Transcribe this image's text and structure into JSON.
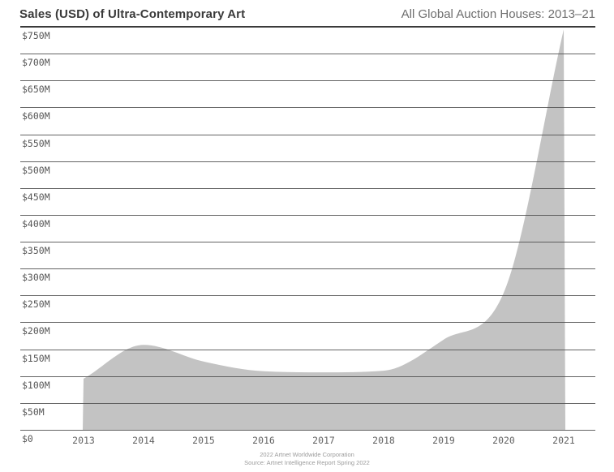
{
  "header": {
    "title": "Sales (USD) of Ultra-Contemporary Art",
    "subtitle": "All Global Auction Houses: 2013–21"
  },
  "chart_data": {
    "type": "area",
    "title": "Sales (USD) of Ultra-Contemporary Art",
    "subtitle": "All Global Auction Houses: 2013–21",
    "unit": "USD millions",
    "x": [
      2013,
      2014,
      2015,
      2016,
      2017,
      2018,
      2019,
      2020,
      2021
    ],
    "values": [
      95,
      158,
      127,
      109,
      107,
      110,
      168,
      255,
      745
    ],
    "x_tick_labels": [
      "2013",
      "2014",
      "2015",
      "2016",
      "2017",
      "2018",
      "2019",
      "2020",
      "2021"
    ],
    "y_tick_labels": [
      "$750M",
      "$700M",
      "$650M",
      "$600M",
      "$550M",
      "$500M",
      "$450M",
      "$400M",
      "$350M",
      "$300M",
      "$250M",
      "$200M",
      "$150M",
      "$100M",
      "$50M",
      "$0"
    ],
    "ylim": [
      0,
      750
    ],
    "y_tick_interval_musd": 50,
    "grid": "horizontal",
    "legend": "none",
    "area_color": "#c3c3c3",
    "gridline_color": "#4f4f4f"
  },
  "footer": {
    "line1": "2022 Artnet Worldwide Corporation",
    "line2": "Source: Artnet Intelligence Report Spring 2022"
  },
  "colors": {
    "background": "#ffffff",
    "title": "#3a3a3a",
    "subtitle": "#6e6e6e",
    "tick_text": "#565656",
    "footer_text": "#9b9b9b"
  }
}
